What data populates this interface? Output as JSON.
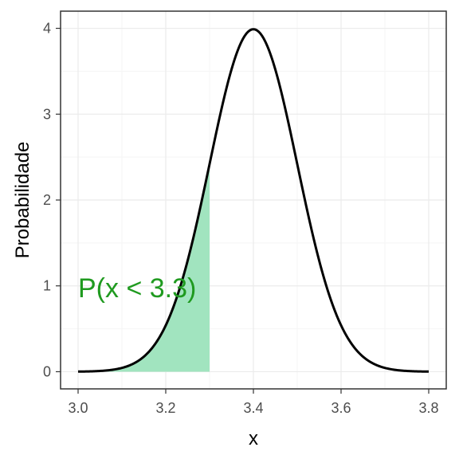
{
  "chart_data": {
    "type": "area",
    "title": "",
    "xlabel": "x",
    "ylabel": "Probabilidade",
    "xlim": [
      2.96,
      3.84
    ],
    "ylim": [
      -0.2,
      4.2
    ],
    "x_ticks": [
      3.0,
      3.2,
      3.4,
      3.6,
      3.8
    ],
    "x_tick_labels": [
      "3.0",
      "3.2",
      "3.4",
      "3.6",
      "3.8"
    ],
    "y_ticks": [
      0,
      1,
      2,
      3,
      4
    ],
    "y_tick_labels": [
      "0",
      "1",
      "2",
      "3",
      "4"
    ],
    "grid": true,
    "legend": "none",
    "series": [
      {
        "kind": "density-curve",
        "distribution": "normal",
        "mean": 3.4,
        "sd": 0.1,
        "x_range": [
          3.0,
          3.8
        ],
        "color": "#000000"
      },
      {
        "kind": "shaded-area",
        "distribution": "normal",
        "mean": 3.4,
        "sd": 0.1,
        "x_range": [
          3.0,
          3.3
        ],
        "color": "#a1e4bf"
      }
    ],
    "annotations": [
      {
        "text": "P(x < 3.3)",
        "x": 3.0,
        "y": 0.98,
        "color": "#1f9a1f"
      }
    ],
    "colors": {
      "curve": "#000000",
      "fill": "#a1e4bf",
      "annotation": "#1f9a1f",
      "grid_major": "#ebebeb",
      "grid_minor": "#f5f5f5",
      "panel_border": "#333333"
    }
  }
}
